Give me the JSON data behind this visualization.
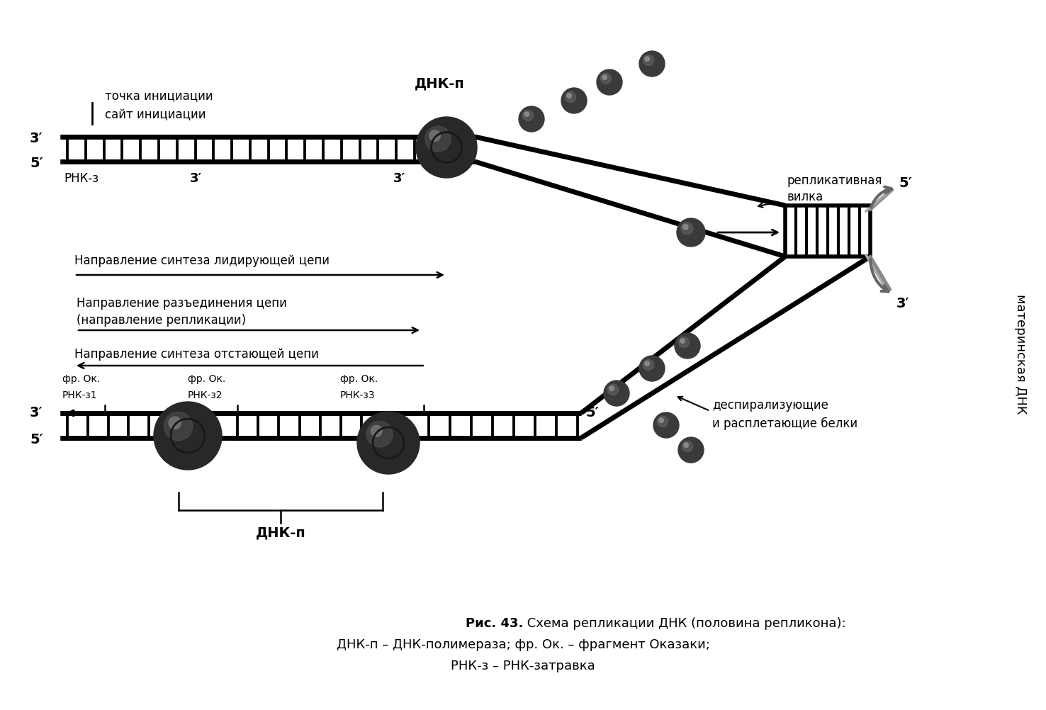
{
  "bg_color": "#ffffff",
  "label_tochka": "точка инициации",
  "label_sayt": "сайт инициации",
  "label_dnkp_top": "ДНК-п",
  "label_repl1": "репликативная",
  "label_repl2": "вилка",
  "label_materinskaya": "материнская ДНК",
  "label_dir1": "Направление синтеза лидирующей цепи",
  "label_dir2a": "Направление разъединения цепи",
  "label_dir2b": "(направление репликации)",
  "label_dir3": "Направление синтеза отстающей цепи",
  "label_fr1a": "фр. Ок.",
  "label_fr1b": "РНК-з1",
  "label_fr2a": "фр. Ок.",
  "label_fr2b": "РНК-з2",
  "label_fr3a": "фр. Ок.",
  "label_fr3b": "РНК-з3",
  "label_dnkp_bottom": "ДНК-п",
  "label_despiral1": "деспирализующие",
  "label_despiral2": "и расплетающие белки",
  "label_rnkz": "РНК-з",
  "caption_bold": "Рис. 43.",
  "caption_rest": " Схема репликации ДНК (половина репликона):",
  "caption_line2": "ДНК-п – ДНК-полимераза; фр. Ок. – фрагмент Оказаки;",
  "caption_line3": "РНК-з – РНК-затравка"
}
